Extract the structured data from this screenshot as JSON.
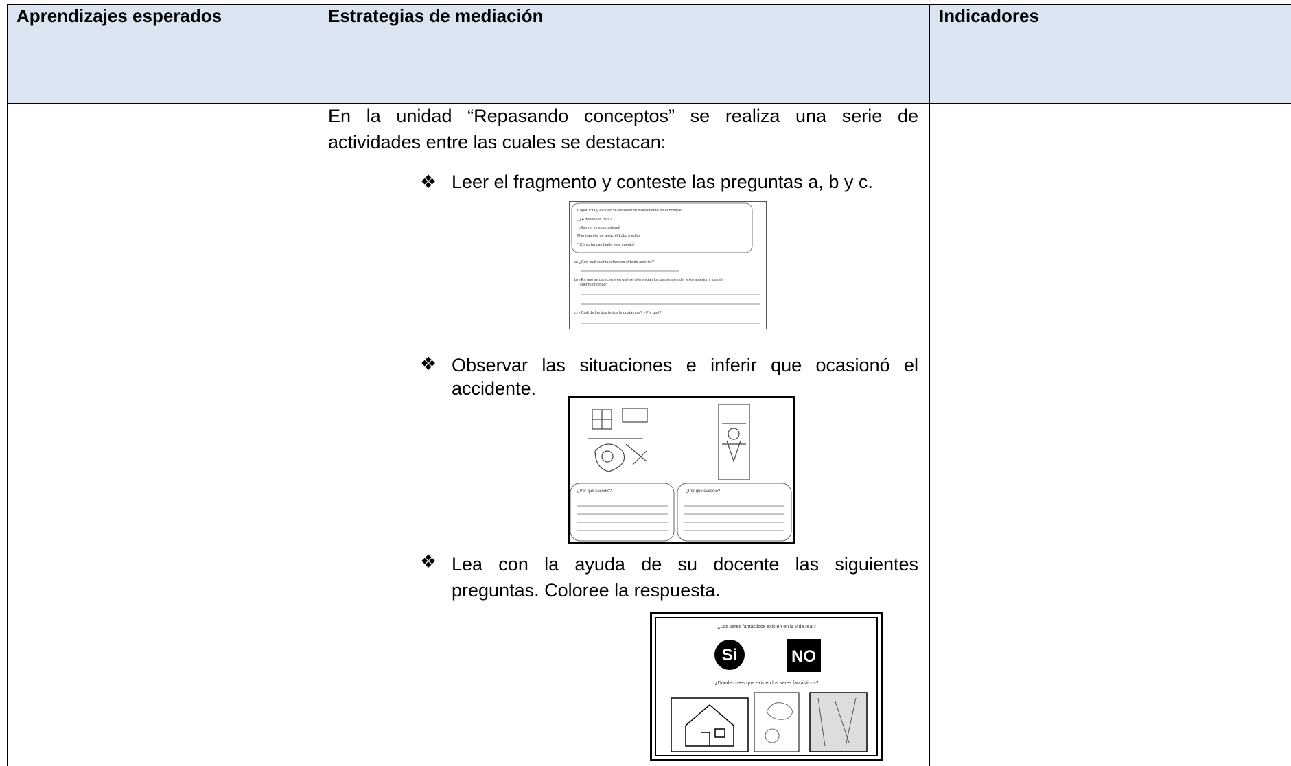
{
  "header": {
    "learning": "Aprendizajes esperados",
    "strategies": "Estrategias de mediación",
    "indicators": "Indicadores"
  },
  "strategies": {
    "intro": "En la unidad “Repasando conceptos” se realiza una serie de actividades entre las cuales se destacan:",
    "items": [
      {
        "bullet": "❖",
        "text": "Leer el fragmento y conteste las preguntas a, b y c.",
        "figure": {
          "lines": [
            "Caperucita y el Lobo se encuentran nuevamente en el bosque",
            "_¿A dónde va, niña?",
            "_¡Ese no es su problema!",
            "Mientras ella se aleja, el Lobo medita:",
            "\"¡Cómo ha cambiado este cuento!",
            "a)  ¿Con cuál cuento relaciona el texto anterior?",
            "b)  ¿En qué se parecen y en qué se diferencian los personajes del texto anterior y los del",
            "cuento original?",
            "c)  ¿Cuál de los dos textos le gusta más? ¿Por qué?"
          ]
        }
      },
      {
        "bullet": "❖",
        "text": "Observar las situaciones e inferir que ocasionó el accidente.",
        "figure": {
          "captions": [
            "¿Por qué sucedió?",
            "¿Por qué sucedió?"
          ]
        }
      },
      {
        "bullet": "❖",
        "text": "Lea con la ayuda de su docente las siguientes preguntas. Coloree la respuesta.",
        "figure": {
          "question1": "¿Los seres fantásticos existen en la vida real?",
          "yes": "Si",
          "no": "NO",
          "question2": "¿Dónde crees que existen los seres fantásticos?"
        }
      }
    ]
  }
}
